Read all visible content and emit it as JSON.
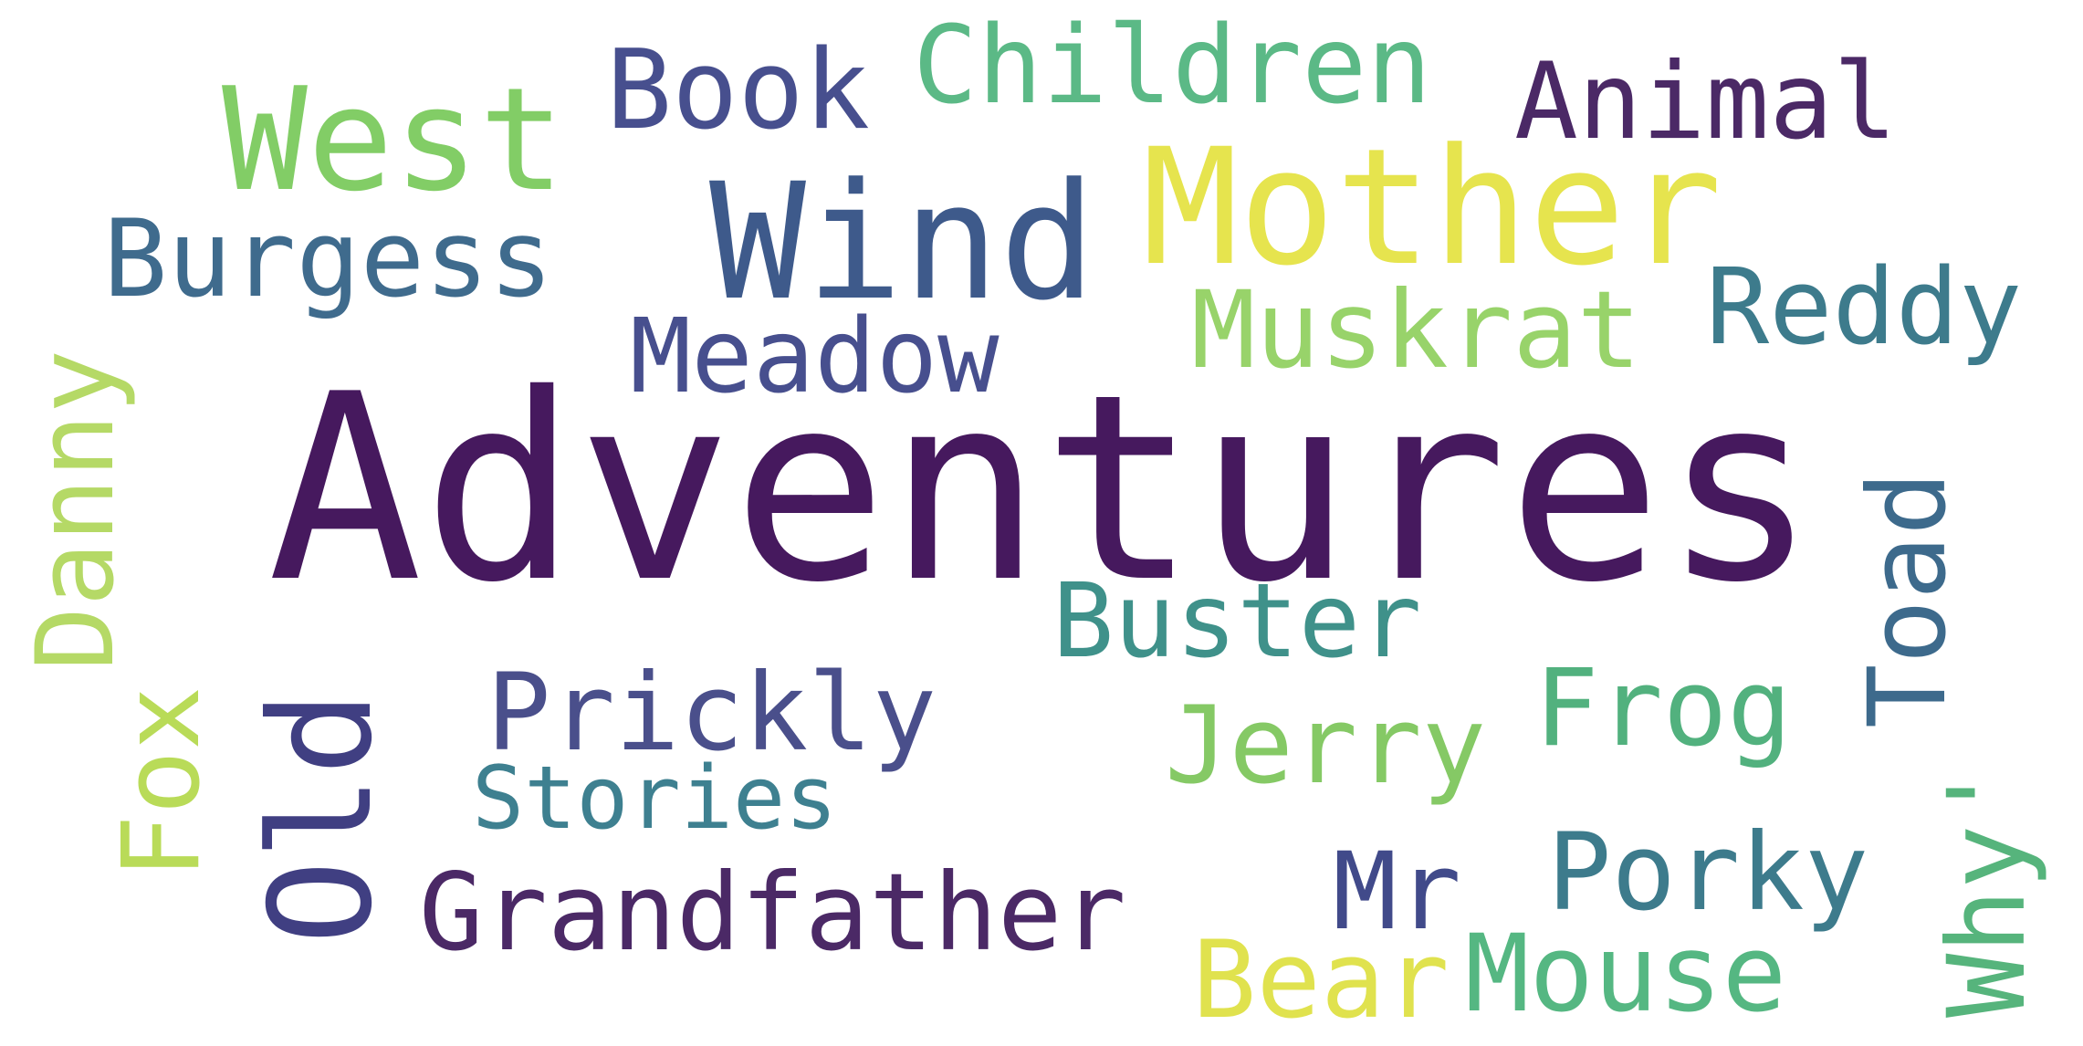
{
  "words": [
    {
      "id": "adventures",
      "text": "Adventures",
      "color": "#46195e"
    },
    {
      "id": "wind",
      "text": "Wind",
      "color": "#3e5a8b"
    },
    {
      "id": "mother",
      "text": "Mother",
      "color": "#e6e44e"
    },
    {
      "id": "west",
      "text": "West",
      "color": "#82cd66"
    },
    {
      "id": "book",
      "text": "Book",
      "color": "#474f8e"
    },
    {
      "id": "children",
      "text": "Children",
      "color": "#5bb986"
    },
    {
      "id": "animal",
      "text": "Animal",
      "color": "#4b2966"
    },
    {
      "id": "burgess",
      "text": "Burgess",
      "color": "#3f6b8d"
    },
    {
      "id": "meadow",
      "text": "Meadow",
      "color": "#474f8e"
    },
    {
      "id": "muskrat",
      "text": "Muskrat",
      "color": "#98d36a"
    },
    {
      "id": "reddy",
      "text": "Reddy",
      "color": "#3d7b8c"
    },
    {
      "id": "danny",
      "text": "Danny",
      "color": "#b5d966"
    },
    {
      "id": "toad",
      "text": "Toad",
      "color": "#3d6a8c"
    },
    {
      "id": "old",
      "text": "Old",
      "color": "#403f82"
    },
    {
      "id": "fox",
      "text": "Fox",
      "color": "#b9db58"
    },
    {
      "id": "buster",
      "text": "Buster",
      "color": "#3f918a"
    },
    {
      "id": "prickly",
      "text": "Prickly",
      "color": "#4a4f8b"
    },
    {
      "id": "jerry",
      "text": "Jerry",
      "color": "#85c965"
    },
    {
      "id": "frog",
      "text": "Frog",
      "color": "#52b17e"
    },
    {
      "id": "stories",
      "text": "Stories",
      "color": "#3e8090"
    },
    {
      "id": "grandfather",
      "text": "Grandfather",
      "color": "#4b2966"
    },
    {
      "id": "mr",
      "text": "Mr",
      "color": "#414a8a"
    },
    {
      "id": "porky",
      "text": "Porky",
      "color": "#3d7b8c"
    },
    {
      "id": "bear",
      "text": "Bear",
      "color": "#e0e24e"
    },
    {
      "id": "mouse",
      "text": "Mouse",
      "color": "#55b782"
    },
    {
      "id": "why",
      "text": "Why'",
      "color": "#56b47c"
    }
  ]
}
